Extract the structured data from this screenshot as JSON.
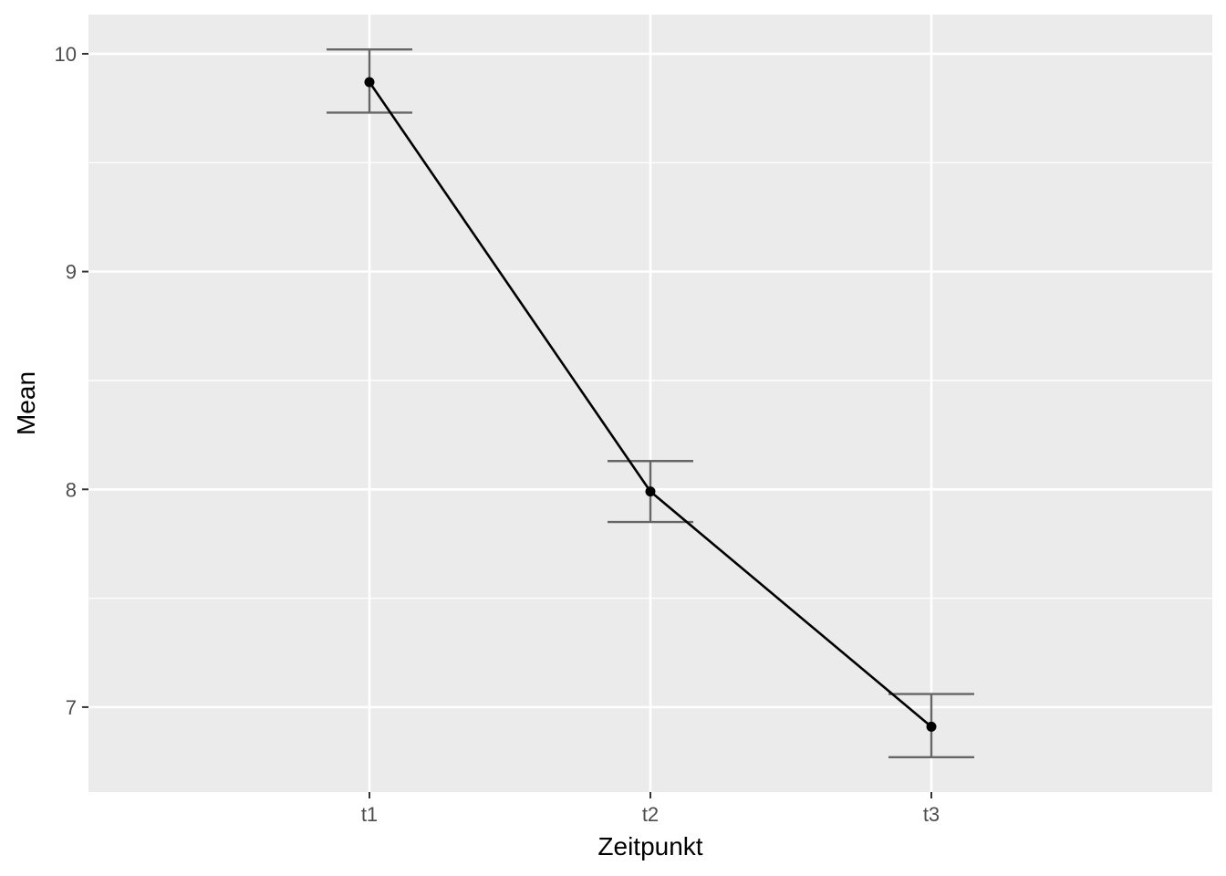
{
  "chart_data": {
    "type": "line",
    "xlabel": "Zeitpunkt",
    "ylabel": "Mean",
    "categories": [
      "t1",
      "t2",
      "t3"
    ],
    "series": [
      {
        "values": [
          9.87,
          7.99,
          6.91
        ],
        "error_lower": [
          9.73,
          7.85,
          6.77
        ],
        "error_upper": [
          10.02,
          8.13,
          7.06
        ]
      }
    ],
    "ylim": [
      6.61,
      10.18
    ],
    "yticks": [
      7,
      8,
      9,
      10
    ],
    "ytick_labels": [
      "7",
      "8",
      "9",
      "10"
    ],
    "grid": true,
    "colors": {
      "panel_background": "#ebebeb",
      "grid": "#ffffff",
      "line": "#000000",
      "points": "#000000",
      "error_bars": "#666666",
      "tick_text": "#4d4d4d",
      "axis_title": "#000000"
    }
  }
}
